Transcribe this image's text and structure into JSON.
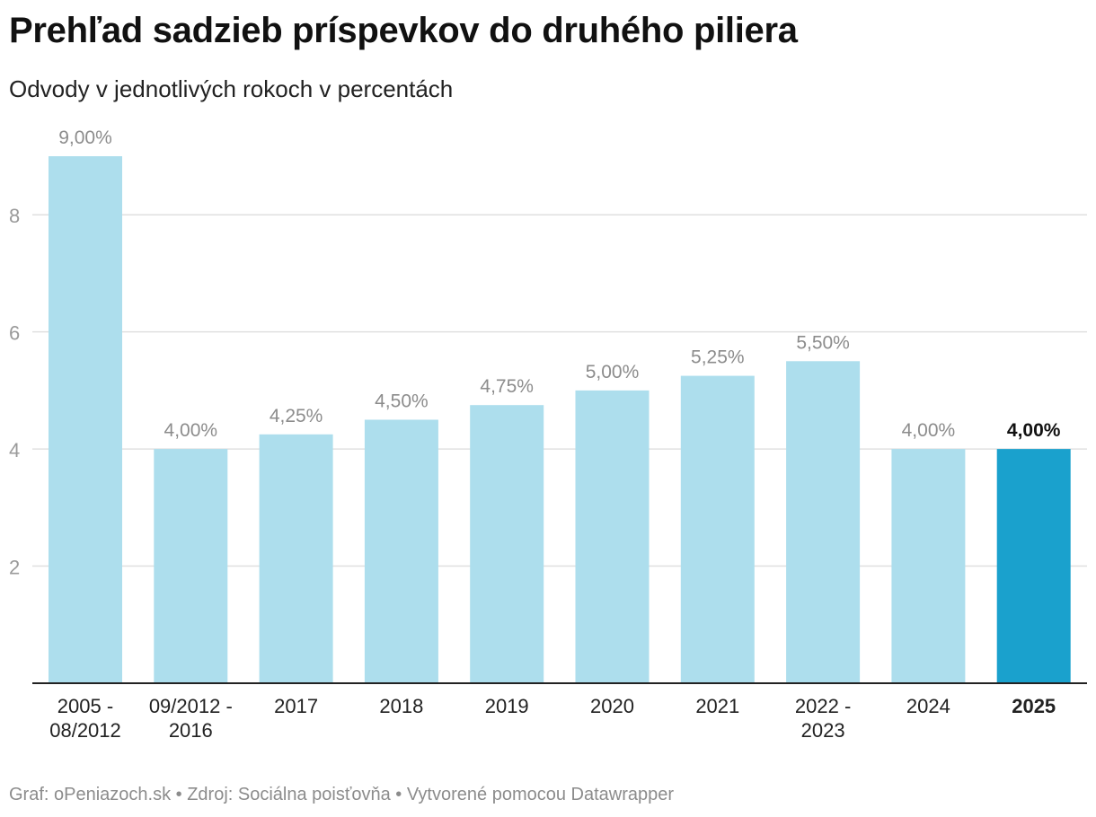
{
  "header": {
    "title": "Prehľad sadzieb príspevkov do druhého piliera",
    "subtitle": "Odvody v jednotlivých rokoch v percentách"
  },
  "footer": {
    "text": "Graf: oPeniazoch.sk • Zdroj: Sociálna poisťovňa • Vytvorené pomocou Datawrapper"
  },
  "colors": {
    "bar": "#addeed",
    "highlight_bar": "#1aa1cd",
    "grid": "#e0e0e0",
    "axis": "#222222",
    "value_label": "#8c8c8c",
    "highlight_label": "#111111",
    "tick_label": "#9a9a9a"
  },
  "chart_data": {
    "type": "bar",
    "title": "Prehľad sadzieb príspevkov do druhého piliera",
    "subtitle": "Odvody v jednotlivých rokoch v percentách",
    "xlabel": "",
    "ylabel": "",
    "ylim": [
      0,
      9
    ],
    "yticks": [
      2,
      4,
      6,
      8
    ],
    "grid": true,
    "categories": [
      [
        "2005 -",
        "08/2012"
      ],
      [
        "09/2012 -",
        "2016"
      ],
      [
        "2017"
      ],
      [
        "2018"
      ],
      [
        "2019"
      ],
      [
        "2020"
      ],
      [
        "2021"
      ],
      [
        "2022 -",
        "2023"
      ],
      [
        "2024"
      ],
      [
        "2025"
      ]
    ],
    "values": [
      9.0,
      4.0,
      4.25,
      4.5,
      4.75,
      5.0,
      5.25,
      5.5,
      4.0,
      4.0
    ],
    "value_labels": [
      "9,00%",
      "4,00%",
      "4,25%",
      "4,50%",
      "4,75%",
      "5,00%",
      "5,25%",
      "5,50%",
      "4,00%",
      "4,00%"
    ],
    "highlight_index": 9
  }
}
